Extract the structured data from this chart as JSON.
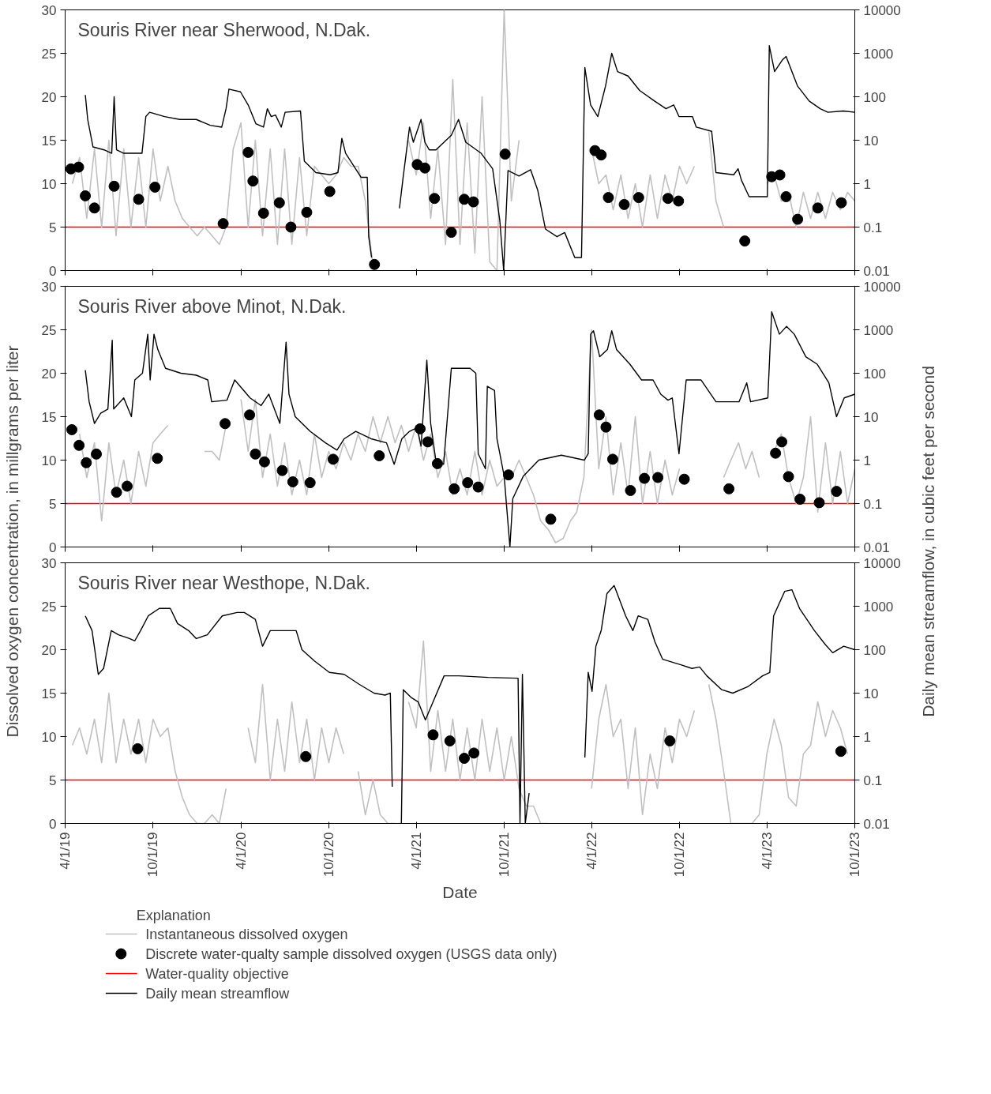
{
  "chart_data": [
    {
      "type": "line",
      "title": "Souris River near Sherwood, N.Dak.",
      "xlim": [
        "2019-04-01",
        "2023-10-01"
      ],
      "xticks": [
        {
          "value": "2019-04-01",
          "label": null
        },
        {
          "value": "2019-10-01",
          "label": null
        },
        {
          "value": "2020-04-01",
          "label": null
        },
        {
          "value": "2020-10-01",
          "label": null
        },
        {
          "value": "2021-04-01",
          "label": null
        },
        {
          "value": "2021-10-01",
          "label": null
        },
        {
          "value": "2022-04-01",
          "label": null
        },
        {
          "value": "2022-10-01",
          "label": null
        },
        {
          "value": "2023-04-01",
          "label": null
        },
        {
          "value": "2023-10-01",
          "label": null
        }
      ],
      "ylim": [
        0,
        30
      ],
      "yticks": [
        0,
        5,
        10,
        15,
        20,
        25,
        30
      ],
      "y2lim": [
        0.01,
        10000
      ],
      "y2ticks": [
        0.01,
        0.1,
        1,
        10,
        100,
        1000,
        10000
      ],
      "log": "y2",
      "tick_labels": "y",
      "ref_lines": [
        {
          "axis": "y",
          "value": 5,
          "color": "#ff0000"
        }
      ],
      "series": [
        {
          "color": "#c0c0c0",
          "x": [
            "2019-04-16",
            "2019-05-01",
            "2019-05-16",
            "2019-06-01",
            "2019-06-16",
            "2019-07-01",
            "2019-07-16",
            "2019-08-01",
            "2019-08-16",
            "2019-09-01",
            "2019-09-16",
            "2019-10-01",
            "2019-10-16",
            "2019-11-01",
            "2019-11-16",
            "2019-12-01",
            "2019-12-16",
            "2020-01-01",
            "2020-01-16",
            "2020-02-01",
            "2020-02-16",
            "2020-03-01",
            "2020-03-16",
            "2020-04-01",
            "2020-04-16",
            "2020-05-01",
            "2020-05-16",
            "2020-06-01",
            "2020-06-16",
            "2020-07-01",
            "2020-07-16",
            "2020-08-01",
            "2020-08-16",
            "2020-09-01",
            "2020-09-16",
            "2020-10-01",
            "2020-10-16",
            "2020-11-01",
            "2020-11-16",
            "2020-12-01",
            "2020-12-16",
            "2021-01-01",
            "2021-02-01",
            "2021-03-16",
            "2021-04-01",
            "2021-04-16",
            "2021-05-01",
            "2021-05-16",
            "2021-06-01",
            "2021-06-16",
            "2021-07-01",
            "2021-07-16",
            "2021-08-01",
            "2021-08-16",
            "2021-09-01",
            "2021-09-16",
            "2021-10-01",
            "2021-10-16",
            "2021-11-01",
            "2022-01-01",
            "2022-04-01",
            "2022-04-16",
            "2022-05-01",
            "2022-05-16",
            "2022-06-01",
            "2022-06-16",
            "2022-07-01",
            "2022-07-16",
            "2022-08-01",
            "2022-08-16",
            "2022-09-01",
            "2022-09-16",
            "2022-10-01",
            "2022-10-16",
            "2022-11-01",
            "2022-11-16",
            "2022-12-01",
            "2022-12-16",
            "2023-01-01",
            "2023-02-01",
            "2023-04-01",
            "2023-04-16",
            "2023-05-01",
            "2023-05-16",
            "2023-06-01",
            "2023-06-16",
            "2023-07-01",
            "2023-07-16",
            "2023-08-01",
            "2023-08-16",
            "2023-09-01",
            "2023-09-16",
            "2023-10-01"
          ],
          "values": [
            10,
            13,
            6,
            14,
            5,
            15,
            4,
            14,
            5,
            13,
            5,
            14,
            8,
            12,
            8,
            6,
            5,
            4,
            5,
            4,
            3,
            5,
            14,
            17,
            5,
            15,
            4,
            14,
            3,
            14,
            3,
            13,
            4,
            12,
            11,
            10,
            11,
            13,
            12,
            12,
            8,
            0.5,
            null,
            15,
            11,
            17,
            6,
            14,
            3,
            22,
            3,
            17,
            2,
            20,
            1,
            0,
            30,
            8,
            15,
            null,
            14,
            10,
            11,
            7,
            11,
            6,
            10,
            5,
            11,
            6,
            11,
            8,
            12,
            10,
            12,
            null,
            16,
            8,
            5,
            null,
            10,
            11,
            8,
            9,
            5,
            9,
            6,
            9,
            6,
            9,
            7,
            9,
            8
          ]
        },
        {
          "type": "scatter",
          "marker": "circle",
          "color": "#000000",
          "x": [
            "2019-04-13",
            "2019-04-29",
            "2019-05-13",
            "2019-06-01",
            "2019-07-12",
            "2019-09-01",
            "2019-10-05",
            "2020-02-24",
            "2020-04-16",
            "2020-04-26",
            "2020-05-18",
            "2020-06-20",
            "2020-07-14",
            "2020-08-16",
            "2020-10-03",
            "2021-01-04",
            "2021-04-03",
            "2021-04-19",
            "2021-05-09",
            "2021-06-13",
            "2021-07-10",
            "2021-07-29",
            "2021-10-03",
            "2022-04-08",
            "2022-04-21",
            "2022-05-06",
            "2022-06-08",
            "2022-07-08",
            "2022-09-07",
            "2022-09-29",
            "2023-02-14",
            "2023-04-11",
            "2023-04-28",
            "2023-05-11",
            "2023-06-04",
            "2023-07-16",
            "2023-09-03"
          ],
          "values": [
            11.7,
            11.9,
            8.6,
            7.2,
            9.7,
            8.2,
            9.6,
            5.4,
            13.6,
            10.3,
            6.6,
            7.8,
            5.0,
            6.7,
            9.1,
            0.7,
            12.2,
            11.8,
            8.3,
            4.4,
            8.2,
            7.9,
            13.4,
            13.8,
            13.3,
            8.4,
            7.6,
            8.4,
            8.3,
            8.0,
            3.4,
            10.8,
            11.0,
            8.5,
            5.9,
            7.2,
            7.8
          ]
        },
        {
          "axis": "y2",
          "color": "#000000",
          "x": [
            "2019-05-13",
            "2019-05-18",
            "2019-05-29",
            "2019-06-21",
            "2019-07-07",
            "2019-07-12",
            "2019-07-17",
            "2019-08-01",
            "2019-09-08",
            "2019-09-16",
            "2019-09-24",
            "2019-10-25",
            "2019-11-26",
            "2019-12-30",
            "2020-01-28",
            "2020-02-21",
            "2020-03-01",
            "2020-03-07",
            "2020-03-31",
            "2020-04-16",
            "2020-05-02",
            "2020-05-18",
            "2020-05-26",
            "2020-06-03",
            "2020-06-12",
            "2020-06-24",
            "2020-07-02",
            "2020-08-03",
            "2020-08-11",
            "2020-09-04",
            "2020-10-04",
            "2020-10-20",
            "2020-10-28",
            "2020-11-05",
            "2020-12-07",
            "2020-12-20",
            "2020-12-23",
            "2020-12-29",
            "2021-01-15",
            "2021-02-25",
            "2021-03-05",
            "2021-03-18",
            "2021-03-26",
            "2021-04-11",
            "2021-04-19",
            "2021-04-28",
            "2021-05-12",
            "2021-06-13",
            "2021-06-28",
            "2021-07-13",
            "2021-08-14",
            "2021-09-07",
            "2021-09-22",
            "2021-09-30",
            "2021-10-09",
            "2021-11-01",
            "2021-11-25",
            "2021-12-10",
            "2021-12-26",
            "2022-01-19",
            "2022-02-04",
            "2022-02-25",
            "2022-03-11",
            "2022-03-18",
            "2022-03-30",
            "2022-04-14",
            "2022-04-30",
            "2022-05-13",
            "2022-05-25",
            "2022-06-16",
            "2022-07-10",
            "2022-08-10",
            "2022-09-03",
            "2022-09-19",
            "2022-09-30",
            "2022-10-28",
            "2022-11-05",
            "2022-12-07",
            "2022-12-16",
            "2023-01-22",
            "2023-01-31",
            "2023-02-07",
            "2023-02-23",
            "2023-04-02",
            "2023-04-06",
            "2023-04-17",
            "2023-05-03",
            "2023-05-11",
            "2023-06-04",
            "2023-06-28",
            "2023-07-21",
            "2023-08-06",
            "2023-09-07",
            "2023-10-01"
          ],
          "values": [
            110,
            30,
            7,
            6,
            5,
            100,
            6,
            5,
            5,
            35,
            44,
            35,
            30,
            30,
            22,
            20,
            53,
            150,
            130,
            65,
            24,
            20,
            53,
            35,
            38,
            20,
            44,
            47,
            3.3,
            1.8,
            1.6,
            1.8,
            11,
            5,
            1.4,
            1.4,
            0.06,
            0.02,
            null,
            0.27,
            1.5,
            20,
            9,
            30,
            9,
            6,
            6,
            13,
            30,
            9,
            5,
            2.2,
            0.14,
            0.01,
            2,
            1.5,
            2.1,
            0.7,
            0.09,
            0.06,
            0.075,
            0.02,
            0.02,
            470,
            65,
            35,
            175,
            1000,
            380,
            300,
            140,
            80,
            53,
            65,
            35,
            35,
            20,
            16,
            1.8,
            1.6,
            2.2,
            1.2,
            0.5,
            0.5,
            1500,
            380,
            700,
            850,
            175,
            80,
            53,
            44,
            47,
            44
          ]
        }
      ]
    },
    {
      "type": "line",
      "title": "Souris River above Minot, N.Dak.",
      "ylabel": "Dissolved oxygen concentration, in millgrams per liter",
      "y2label": "Daily mean streamflow, in cubic feet per second",
      "xlim": [
        "2019-04-01",
        "2023-10-01"
      ],
      "xticks": [
        {
          "value": "2019-04-01",
          "label": null
        },
        {
          "value": "2019-10-01",
          "label": null
        },
        {
          "value": "2020-04-01",
          "label": null
        },
        {
          "value": "2020-10-01",
          "label": null
        },
        {
          "value": "2021-04-01",
          "label": null
        },
        {
          "value": "2021-10-01",
          "label": null
        },
        {
          "value": "2022-04-01",
          "label": null
        },
        {
          "value": "2022-10-01",
          "label": null
        },
        {
          "value": "2023-04-01",
          "label": null
        },
        {
          "value": "2023-10-01",
          "label": null
        }
      ],
      "ylim": [
        0,
        30
      ],
      "yticks": [
        0,
        5,
        10,
        15,
        20,
        25,
        30
      ],
      "y2lim": [
        0.01,
        10000
      ],
      "y2ticks": [
        0.01,
        0.1,
        1,
        10,
        100,
        1000,
        10000
      ],
      "log": "y2",
      "tick_labels": "y",
      "ref_lines": [
        {
          "axis": "y",
          "value": 5,
          "color": "#ff0000"
        }
      ],
      "series": [
        {
          "color": "#c0c0c0",
          "x": [
            "2019-05-01",
            "2019-05-16",
            "2019-06-01",
            "2019-06-16",
            "2019-07-01",
            "2019-07-16",
            "2019-08-01",
            "2019-08-16",
            "2019-09-01",
            "2019-09-16",
            "2019-10-01",
            "2019-10-16",
            "2019-11-01",
            "2019-12-01",
            "2020-01-16",
            "2020-02-01",
            "2020-02-16",
            "2020-03-01",
            "2020-03-16",
            "2020-04-01",
            "2020-04-16",
            "2020-05-01",
            "2020-05-16",
            "2020-06-01",
            "2020-06-16",
            "2020-07-01",
            "2020-07-16",
            "2020-08-01",
            "2020-08-16",
            "2020-09-01",
            "2020-09-16",
            "2020-10-01",
            "2020-10-16",
            "2020-11-01",
            "2020-11-16",
            "2020-12-01",
            "2020-12-16",
            "2021-01-01",
            "2021-01-16",
            "2021-02-01",
            "2021-02-16",
            "2021-03-01",
            "2021-03-16",
            "2021-04-01",
            "2021-04-16",
            "2021-05-01",
            "2021-05-16",
            "2021-06-01",
            "2021-06-16",
            "2021-07-01",
            "2021-07-16",
            "2021-08-01",
            "2021-08-16",
            "2021-09-01",
            "2021-09-16",
            "2021-10-01",
            "2021-10-16",
            "2021-11-01",
            "2021-11-16",
            "2021-12-01",
            "2021-12-16",
            "2022-01-01",
            "2022-01-16",
            "2022-02-01",
            "2022-02-16",
            "2022-03-01",
            "2022-03-16",
            "2022-04-01",
            "2022-04-16",
            "2022-05-01",
            "2022-05-16",
            "2022-06-01",
            "2022-06-16",
            "2022-07-01",
            "2022-07-16",
            "2022-08-01",
            "2022-08-16",
            "2022-09-01",
            "2022-09-16",
            "2022-10-01",
            "2022-10-16",
            "2023-01-01",
            "2023-01-16",
            "2023-02-01",
            "2023-02-16",
            "2023-03-01",
            "2023-03-16",
            "2023-04-01",
            "2023-04-16",
            "2023-05-01",
            "2023-05-16",
            "2023-06-01",
            "2023-06-16",
            "2023-07-01",
            "2023-07-16",
            "2023-08-01",
            "2023-08-16",
            "2023-09-01",
            "2023-09-16",
            "2023-10-01"
          ],
          "values": [
            13,
            8,
            12,
            3,
            12,
            6,
            10,
            5,
            11,
            7,
            12,
            13,
            14,
            null,
            11,
            11,
            10,
            14,
            null,
            17,
            11,
            17,
            8,
            13,
            7,
            12,
            6,
            10,
            6,
            13,
            8,
            11,
            9,
            12,
            10,
            13,
            11,
            15,
            12,
            15,
            12,
            14,
            11,
            14,
            10,
            13,
            8,
            11,
            6,
            9,
            6,
            11,
            6,
            10,
            7,
            8,
            8,
            10,
            8,
            6,
            3,
            2,
            0.5,
            1,
            3,
            4,
            8,
            25,
            9,
            15,
            6,
            12,
            6,
            15,
            5,
            11,
            5,
            10,
            6,
            9,
            null,
            8,
            10,
            12,
            9,
            11,
            8,
            null,
            11,
            13,
            8,
            5,
            8,
            15,
            4,
            12,
            5,
            11,
            5,
            9
          ]
        },
        {
          "type": "scatter",
          "marker": "circle",
          "color": "#000000",
          "x": [
            "2019-04-15",
            "2019-04-30",
            "2019-05-15",
            "2019-06-05",
            "2019-07-17",
            "2019-08-08",
            "2019-10-10",
            "2020-02-28",
            "2020-04-19",
            "2020-05-01",
            "2020-05-20",
            "2020-06-26",
            "2020-07-18",
            "2020-08-23",
            "2020-10-10",
            "2021-01-14",
            "2021-04-09",
            "2021-04-25",
            "2021-05-15",
            "2021-06-19",
            "2021-07-17",
            "2021-08-08",
            "2021-10-10",
            "2022-01-06",
            "2022-04-17",
            "2022-05-01",
            "2022-05-15",
            "2022-06-21",
            "2022-07-20",
            "2022-08-17",
            "2022-10-11",
            "2023-01-12",
            "2023-04-19",
            "2023-05-02",
            "2023-05-16",
            "2023-06-09",
            "2023-07-19",
            "2023-08-24"
          ],
          "values": [
            13.5,
            11.7,
            9.7,
            10.7,
            6.3,
            7.0,
            10.2,
            14.2,
            15.2,
            10.7,
            9.8,
            8.8,
            7.5,
            7.4,
            10.1,
            10.5,
            13.6,
            12.1,
            9.6,
            6.7,
            7.4,
            6.9,
            8.3,
            3.2,
            15.2,
            13.8,
            10.1,
            6.5,
            7.9,
            8.0,
            7.8,
            6.7,
            10.8,
            12.1,
            8.1,
            5.5,
            5.1,
            6.4
          ]
        },
        {
          "axis": "y2",
          "color": "#000000",
          "x": [
            "2019-05-13",
            "2019-05-21",
            "2019-06-01",
            "2019-06-14",
            "2019-06-29",
            "2019-07-08",
            "2019-07-11",
            "2019-08-01",
            "2019-08-17",
            "2019-08-24",
            "2019-09-09",
            "2019-09-20",
            "2019-09-25",
            "2019-10-03",
            "2019-10-11",
            "2019-10-27",
            "2019-11-28",
            "2019-12-30",
            "2020-01-23",
            "2020-01-31",
            "2020-03-03",
            "2020-03-19",
            "2020-04-20",
            "2020-05-13",
            "2020-05-29",
            "2020-06-21",
            "2020-07-04",
            "2020-07-10",
            "2020-07-23",
            "2020-08-23",
            "2020-09-24",
            "2020-10-18",
            "2020-11-02",
            "2020-11-26",
            "2020-12-28",
            "2021-01-29",
            "2021-02-14",
            "2021-03-02",
            "2021-03-18",
            "2021-04-03",
            "2021-04-11",
            "2021-04-23",
            "2021-05-01",
            "2021-05-12",
            "2021-05-28",
            "2021-06-13",
            "2021-07-22",
            "2021-08-03",
            "2021-08-08",
            "2021-08-23",
            "2021-08-27",
            "2021-09-11",
            "2021-09-16",
            "2021-10-01",
            "2021-10-13",
            "2021-10-19",
            "2021-11-10",
            "2021-12-12",
            "2022-01-28",
            "2022-03-17",
            "2022-03-25",
            "2022-03-30",
            "2022-04-05",
            "2022-04-18",
            "2022-05-04",
            "2022-05-13",
            "2022-05-23",
            "2022-06-20",
            "2022-07-14",
            "2022-08-07",
            "2022-08-23",
            "2022-09-07",
            "2022-09-16",
            "2022-09-30",
            "2022-10-15",
            "2022-11-15",
            "2022-12-16",
            "2023-02-02",
            "2023-02-18",
            "2023-02-26",
            "2023-04-03",
            "2023-04-11",
            "2023-04-27",
            "2023-05-12",
            "2023-05-28",
            "2023-06-21",
            "2023-07-15",
            "2023-08-08",
            "2023-08-24",
            "2023-09-09",
            "2023-10-01"
          ],
          "values": [
            118,
            22,
            7,
            12,
            15,
            575,
            15,
            27,
            10,
            70,
            100,
            790,
            70,
            790,
            350,
            130,
            100,
            90,
            70,
            22,
            24,
            70,
            27,
            18,
            33,
            7,
            520,
            33,
            10,
            4.6,
            2.5,
            1.7,
            3.1,
            4.6,
            3.1,
            2.5,
            0.8,
            3.1,
            4.6,
            5.6,
            2.1,
            200,
            7,
            0.95,
            0.8,
            130,
            130,
            100,
            1.4,
            0.63,
            50,
            40,
            3.1,
            0.43,
            0.01,
            0.13,
            0.43,
            1.0,
            1.3,
            1.0,
            1.4,
            790,
            950,
            240,
            350,
            950,
            350,
            160,
            70,
            70,
            33,
            24,
            27,
            1.4,
            70,
            70,
            22,
            22,
            60,
            22,
            27,
            2600,
            790,
            1200,
            790,
            240,
            160,
            60,
            10,
            27,
            33
          ]
        }
      ]
    },
    {
      "type": "line",
      "title": "Souris River near Westhope, N.Dak.",
      "xlabel": "Date",
      "legend_title": "Explanation",
      "legend": "bottom",
      "xlim": [
        "2019-04-01",
        "2023-10-01"
      ],
      "xticks": [
        {
          "value": "2019-04-01",
          "label": "4/1/19"
        },
        {
          "value": "2019-10-01",
          "label": "10/1/19"
        },
        {
          "value": "2020-04-01",
          "label": "4/1/20"
        },
        {
          "value": "2020-10-01",
          "label": "10/1/20"
        },
        {
          "value": "2021-04-01",
          "label": "4/1/21"
        },
        {
          "value": "2021-10-01",
          "label": "10/1/21"
        },
        {
          "value": "2022-04-01",
          "label": "4/1/22"
        },
        {
          "value": "2022-10-01",
          "label": "10/1/22"
        },
        {
          "value": "2023-04-01",
          "label": "4/1/23"
        },
        {
          "value": "2023-10-01",
          "label": "10/1/23"
        }
      ],
      "ylim": [
        0,
        30
      ],
      "yticks": [
        0,
        5,
        10,
        15,
        20,
        25,
        30
      ],
      "y2lim": [
        0.01,
        10000
      ],
      "y2ticks": [
        0.01,
        0.1,
        1,
        10,
        100,
        1000,
        10000
      ],
      "log": "y2",
      "ref_lines": [
        {
          "axis": "y",
          "value": 5,
          "color": "#ff0000",
          "label": "Water-quality objective"
        }
      ],
      "series": [
        {
          "name": "Instantaneous dissolved oxygen",
          "color": "#c0c0c0",
          "x": [
            "2019-04-16",
            "2019-05-01",
            "2019-05-16",
            "2019-06-01",
            "2019-06-16",
            "2019-07-01",
            "2019-07-16",
            "2019-08-01",
            "2019-08-16",
            "2019-09-01",
            "2019-09-16",
            "2019-10-01",
            "2019-10-16",
            "2019-11-01",
            "2019-11-16",
            "2019-12-01",
            "2019-12-16",
            "2020-01-01",
            "2020-01-16",
            "2020-02-01",
            "2020-02-16",
            "2020-03-01",
            "2020-03-16",
            "2020-04-16",
            "2020-05-01",
            "2020-05-16",
            "2020-06-01",
            "2020-06-16",
            "2020-07-01",
            "2020-07-16",
            "2020-08-01",
            "2020-08-16",
            "2020-09-01",
            "2020-09-16",
            "2020-10-01",
            "2020-10-16",
            "2020-11-01",
            "2020-11-16",
            "2020-12-01",
            "2020-12-16",
            "2021-01-01",
            "2021-01-16",
            "2021-02-01",
            "2021-02-16",
            "2021-03-01",
            "2021-03-16",
            "2021-04-01",
            "2021-04-16",
            "2021-05-01",
            "2021-05-16",
            "2021-06-01",
            "2021-06-16",
            "2021-07-01",
            "2021-07-16",
            "2021-08-01",
            "2021-08-16",
            "2021-09-01",
            "2021-09-16",
            "2021-10-01",
            "2021-10-16",
            "2021-11-01",
            "2021-11-16",
            "2021-12-01",
            "2021-12-16",
            "2022-01-01",
            "2022-02-01",
            "2022-04-01",
            "2022-04-16",
            "2022-05-01",
            "2022-05-16",
            "2022-06-01",
            "2022-06-16",
            "2022-07-01",
            "2022-07-16",
            "2022-08-01",
            "2022-08-16",
            "2022-09-01",
            "2022-09-16",
            "2022-10-01",
            "2022-10-16",
            "2022-11-01",
            "2022-11-16",
            "2022-12-01",
            "2022-12-16",
            "2023-01-01",
            "2023-01-16",
            "2023-02-01",
            "2023-02-16",
            "2023-03-01",
            "2023-03-16",
            "2023-04-01",
            "2023-04-16",
            "2023-05-01",
            "2023-05-16",
            "2023-06-01",
            "2023-06-16",
            "2023-07-01",
            "2023-07-16",
            "2023-08-01",
            "2023-08-16",
            "2023-09-01",
            "2023-09-16"
          ],
          "values": [
            9,
            11,
            8,
            12,
            7,
            15,
            7,
            12,
            8,
            12,
            7,
            12,
            10,
            11,
            6,
            3,
            1,
            0,
            0,
            1,
            0,
            4,
            null,
            11,
            7,
            16,
            5,
            12,
            6,
            14,
            7,
            12,
            5,
            11,
            7,
            11,
            8,
            null,
            6,
            1,
            5,
            1,
            0,
            0,
            null,
            14,
            11,
            21,
            6,
            13,
            6,
            12,
            5,
            11,
            5,
            12,
            6,
            11,
            5,
            10,
            4,
            2,
            2,
            0,
            0,
            null,
            4,
            12,
            16,
            10,
            12,
            4,
            11,
            1,
            8,
            4,
            11,
            7,
            12,
            10,
            13,
            null,
            16,
            12,
            6,
            0,
            0,
            0,
            0,
            1,
            8,
            12,
            9,
            3,
            2,
            8,
            9,
            14,
            10,
            13,
            11,
            8
          ]
        },
        {
          "type": "scatter",
          "marker": "circle",
          "name": "Discrete water-qualty sample dissolved oxygen (USGS data only)",
          "color": "#000000",
          "x": [
            "2019-08-30",
            "2020-08-14",
            "2021-05-06",
            "2021-06-10",
            "2021-07-10",
            "2021-07-30",
            "2022-09-11",
            "2023-09-02"
          ],
          "values": [
            8.6,
            7.7,
            10.2,
            9.5,
            7.5,
            8.1,
            9.5,
            8.3
          ]
        },
        {
          "axis": "y2",
          "name": "Daily mean streamflow",
          "color": "#000000",
          "x": [
            "2019-05-13",
            "2019-05-27",
            "2019-06-09",
            "2019-06-20",
            "2019-07-06",
            "2019-07-21",
            "2019-08-13",
            "2019-08-24",
            "2019-09-05",
            "2019-09-21",
            "2019-10-14",
            "2019-11-06",
            "2019-11-21",
            "2019-12-14",
            "2019-12-30",
            "2020-01-22",
            "2020-02-22",
            "2020-03-24",
            "2020-04-08",
            "2020-05-01",
            "2020-05-16",
            "2020-06-01",
            "2020-06-24",
            "2020-07-25",
            "2020-08-06",
            "2020-09-01",
            "2020-10-02",
            "2020-11-02",
            "2020-12-03",
            "2021-01-03",
            "2021-01-26",
            "2021-02-06",
            "2021-02-10",
            "2021-02-20",
            "2021-03-01",
            "2021-03-05",
            "2021-03-21",
            "2021-04-05",
            "2021-04-20",
            "2021-05-06",
            "2021-05-29",
            "2021-06-29",
            "2021-08-29",
            "2021-10-30",
            "2021-11-03",
            "2021-11-08",
            "2021-11-14",
            "2021-11-22",
            "2022-01-15",
            "2022-03-18",
            "2022-03-25",
            "2022-04-02",
            "2022-04-10",
            "2022-04-21",
            "2022-05-03",
            "2022-05-18",
            "2022-06-11",
            "2022-06-26",
            "2022-07-07",
            "2022-07-27",
            "2022-08-11",
            "2022-08-27",
            "2022-10-04",
            "2022-10-27",
            "2022-11-12",
            "2022-11-27",
            "2022-12-28",
            "2023-01-20",
            "2023-02-20",
            "2023-03-23",
            "2023-04-07",
            "2023-04-15",
            "2023-05-08",
            "2023-05-23",
            "2023-06-08",
            "2023-07-09",
            "2023-08-01",
            "2023-08-16",
            "2023-09-08",
            "2023-10-01"
          ],
          "values": [
            600,
            275,
            27,
            37,
            275,
            220,
            180,
            160,
            275,
            600,
            890,
            890,
            400,
            275,
            180,
            220,
            600,
            720,
            720,
            500,
            120,
            275,
            275,
            275,
            100,
            55,
            30,
            27,
            16,
            10,
            9,
            10,
            0.07,
            null,
            0.01,
            12,
            8,
            6.3,
            2.4,
            6.3,
            25,
            25,
            23,
            22,
            0.01,
            27,
            0.01,
            0.05,
            null,
            0.33,
            30,
            11,
            120,
            275,
            1950,
            3000,
            600,
            275,
            600,
            500,
            150,
            60,
            45,
            37,
            40,
            25,
            12,
            10,
            14,
            25,
            30,
            600,
            2200,
            2400,
            890,
            275,
            130,
            85,
            120,
            100
          ]
        }
      ]
    }
  ]
}
